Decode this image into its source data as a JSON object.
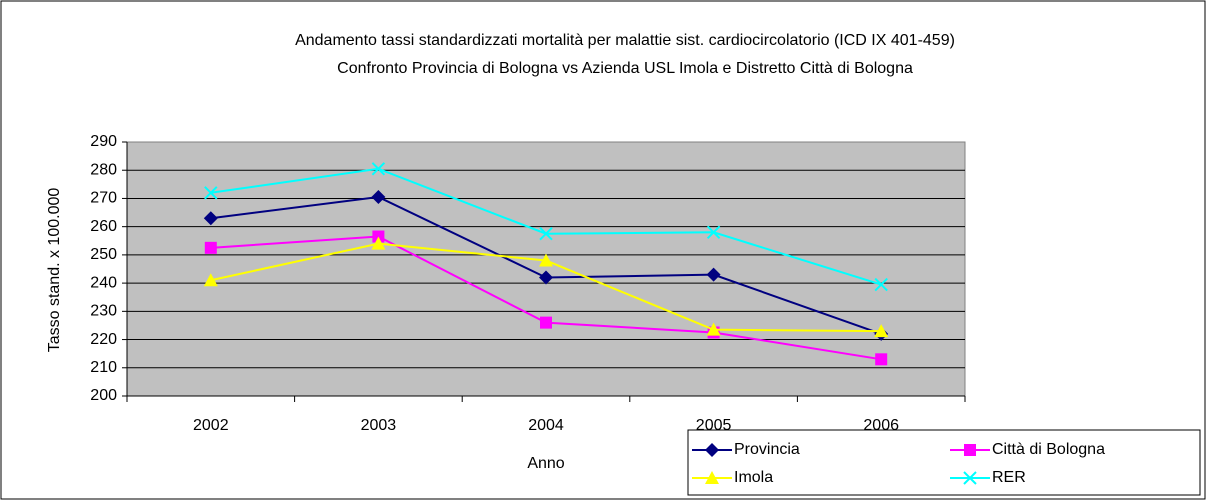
{
  "chart_data": {
    "type": "line",
    "title": "Andamento tassi standardizzati mortalità per malattie sist. cardiocircolatorio (ICD IX 401-459)",
    "subtitle": "Confronto Provincia di Bologna vs Azienda USL Imola e Distretto Città di Bologna",
    "x_label": "Anno",
    "y_label": "Tasso stand. x 100.000",
    "categories": [
      "2002",
      "2003",
      "2004",
      "2005",
      "2006"
    ],
    "series": [
      {
        "name": "Provincia",
        "color": "#000080",
        "marker": "diamond",
        "values": [
          263,
          270.5,
          242,
          243,
          222
        ]
      },
      {
        "name": "Città di Bologna",
        "color": "#ff00ff",
        "marker": "square",
        "values": [
          252.5,
          256.5,
          226,
          222.5,
          213
        ]
      },
      {
        "name": "Imola",
        "color": "#ffff00",
        "marker": "triangle",
        "values": [
          241,
          254,
          248,
          223.5,
          223
        ]
      },
      {
        "name": "RER",
        "color": "#00ffff",
        "marker": "x",
        "values": [
          272,
          280.5,
          257.5,
          258,
          239.5
        ]
      }
    ],
    "ylim": [
      200,
      290
    ],
    "yticks": [
      200,
      210,
      220,
      230,
      240,
      250,
      260,
      270,
      280,
      290
    ],
    "grid": true
  }
}
